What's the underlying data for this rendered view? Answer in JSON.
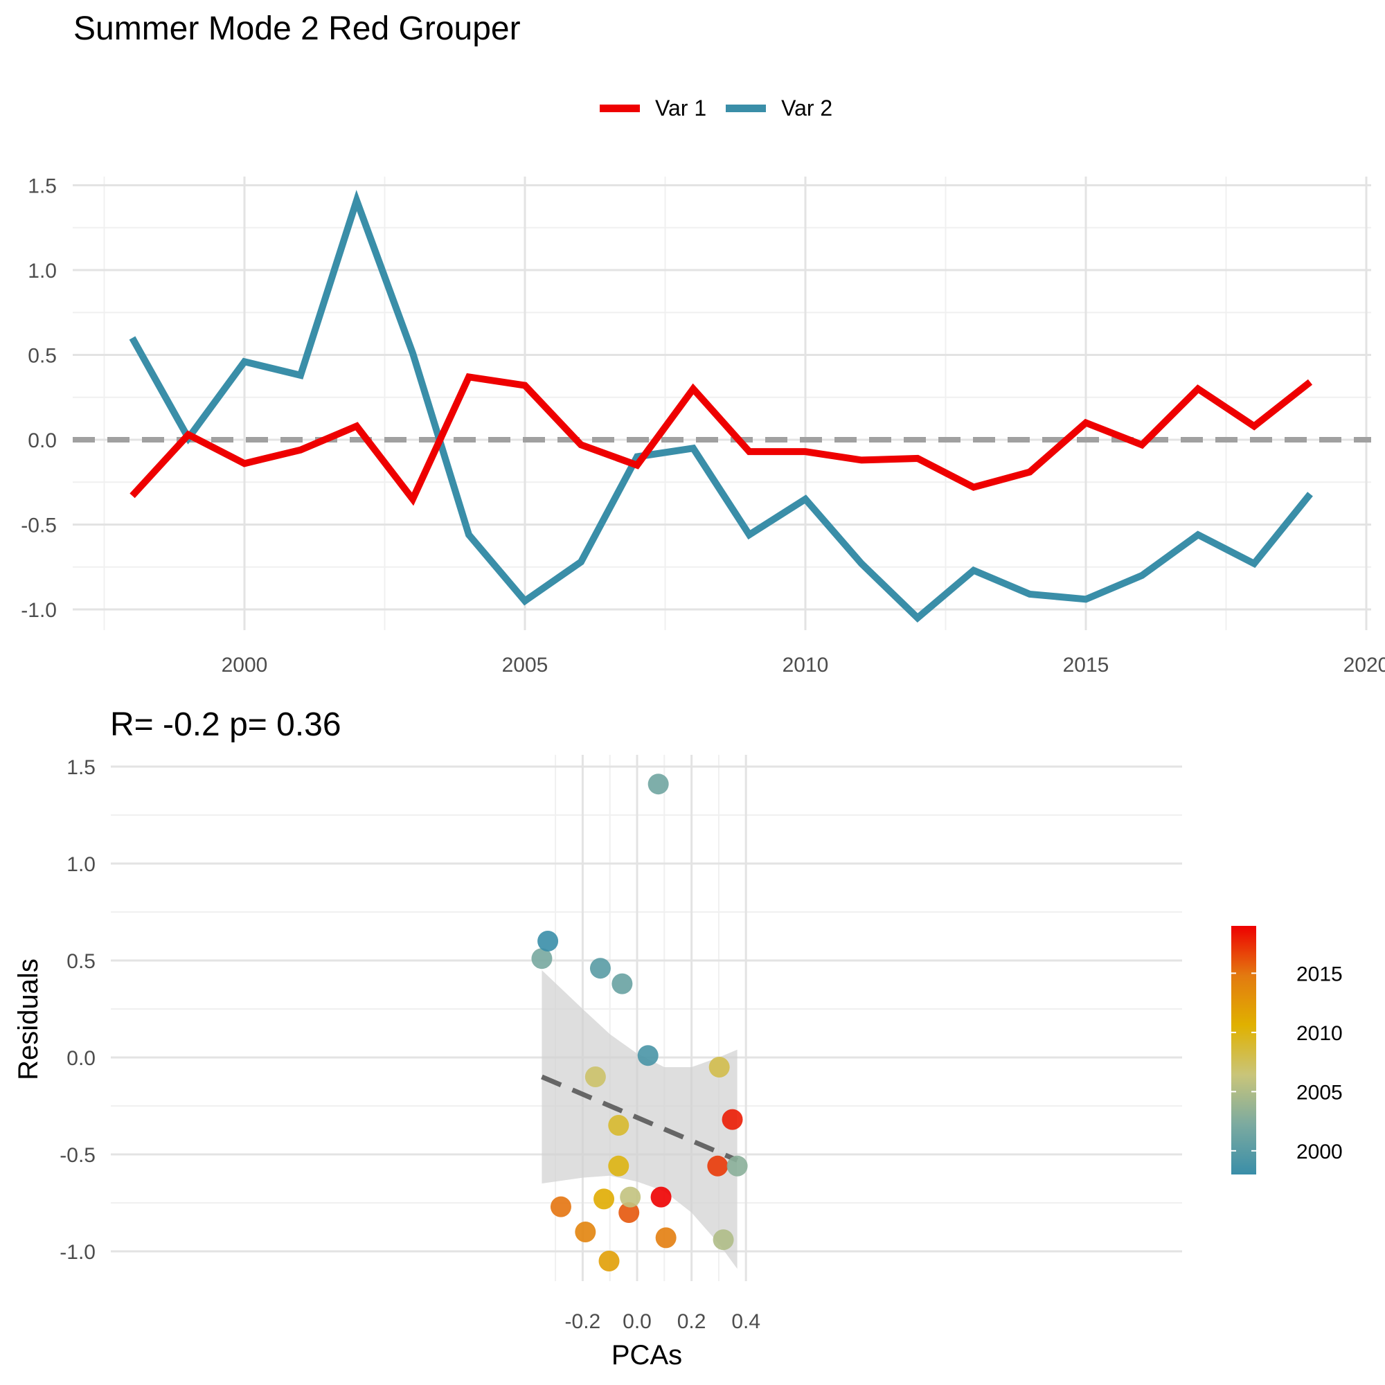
{
  "title": "Summer Mode 2 Red Grouper",
  "legend": {
    "items": [
      {
        "label": "Var 1",
        "color": "#EE0000"
      },
      {
        "label": "Var 2",
        "color": "#3A8EA8"
      }
    ]
  },
  "chart_data": [
    {
      "type": "line",
      "x_axis": {
        "ticks": [
          "2000",
          "2005",
          "2010",
          "2015",
          "2020"
        ],
        "range": [
          1997.5,
          2020
        ]
      },
      "y_axis": {
        "ticks": [
          "1.5",
          "1.0",
          "0.5",
          "0.0",
          "-0.5",
          "-1.0"
        ],
        "range": [
          -1.1,
          1.5
        ]
      },
      "grid": true,
      "reference_line": {
        "y": 0,
        "style": "dashed",
        "color": "#A0A0A0"
      },
      "x": [
        1998,
        1999,
        2000,
        2001,
        2002,
        2003,
        2004,
        2005,
        2006,
        2007,
        2008,
        2009,
        2010,
        2011,
        2012,
        2013,
        2014,
        2015,
        2016,
        2017,
        2018,
        2019
      ],
      "series": [
        {
          "name": "Var 1",
          "color": "#EE0000",
          "values": [
            -0.33,
            0.03,
            -0.14,
            -0.06,
            0.08,
            -0.35,
            0.37,
            0.32,
            -0.03,
            -0.15,
            0.3,
            -0.07,
            -0.07,
            -0.12,
            -0.11,
            -0.28,
            -0.19,
            0.1,
            -0.03,
            0.3,
            0.08,
            0.34
          ]
        },
        {
          "name": "Var 2",
          "color": "#3A8EA8",
          "values": [
            0.6,
            0.01,
            0.46,
            0.38,
            1.41,
            0.51,
            -0.56,
            -0.95,
            -0.72,
            -0.1,
            -0.05,
            -0.56,
            -0.35,
            -0.73,
            -1.05,
            -0.77,
            -0.91,
            -0.94,
            -0.8,
            -0.56,
            -0.73,
            -0.32
          ]
        }
      ]
    },
    {
      "type": "scatter",
      "annotation": "R= -0.2  p= 0.36",
      "xlabel": "PCAs",
      "ylabel": "Residuals",
      "x_axis": {
        "ticks": [
          "-0.2",
          "0.0",
          "0.2",
          "0.4"
        ],
        "range": [
          -0.385,
          0.4
        ]
      },
      "y_axis": {
        "ticks": [
          "1.5",
          "1.0",
          "0.5",
          "0.0",
          "-0.5",
          "-1.0"
        ],
        "range": [
          -1.15,
          1.55
        ]
      },
      "grid": true,
      "points": [
        {
          "x": -0.35,
          "y": 0.51,
          "year": 2002
        },
        {
          "x": -0.328,
          "y": 0.6,
          "year": 1998
        },
        {
          "x": -0.28,
          "y": -0.77,
          "year": 2015
        },
        {
          "x": -0.19,
          "y": -0.9,
          "year": 2014
        },
        {
          "x": -0.153,
          "y": -0.1,
          "year": 2007
        },
        {
          "x": -0.135,
          "y": 0.46,
          "year": 2000
        },
        {
          "x": -0.122,
          "y": -0.73,
          "year": 2011
        },
        {
          "x": -0.103,
          "y": -1.05,
          "year": 2012
        },
        {
          "x": -0.068,
          "y": -0.35,
          "year": 2009
        },
        {
          "x": -0.068,
          "y": -0.56,
          "year": 2010
        },
        {
          "x": -0.055,
          "y": 0.38,
          "year": 2001
        },
        {
          "x": -0.03,
          "y": -0.8,
          "year": 2016
        },
        {
          "x": -0.025,
          "y": -0.72,
          "year": 2006
        },
        {
          "x": 0.04,
          "y": 0.01,
          "year": 1999
        },
        {
          "x": 0.078,
          "y": 1.41,
          "year": 2001.5
        },
        {
          "x": 0.088,
          "y": -0.72,
          "year": 2019
        },
        {
          "x": 0.106,
          "y": -0.93,
          "year": 2014.5
        },
        {
          "x": 0.296,
          "y": -0.56,
          "year": 2017
        },
        {
          "x": 0.302,
          "y": -0.05,
          "year": 2008
        },
        {
          "x": 0.317,
          "y": -0.94,
          "year": 2005
        },
        {
          "x": 0.35,
          "y": -0.32,
          "year": 2018
        },
        {
          "x": 0.368,
          "y": -0.56,
          "year": 2003
        }
      ],
      "fit_line": {
        "x": [
          -0.35,
          0.368
        ],
        "y": [
          -0.1,
          -0.53
        ],
        "style": "dashed",
        "color": "#666666"
      },
      "confidence_band": {
        "x": [
          -0.35,
          -0.2,
          -0.1,
          0.0,
          0.1,
          0.2,
          0.3,
          0.368
        ],
        "upper": [
          0.45,
          0.25,
          0.12,
          0.02,
          -0.05,
          -0.05,
          0.0,
          0.04
        ],
        "lower": [
          -0.65,
          -0.62,
          -0.61,
          -0.64,
          -0.69,
          -0.8,
          -0.96,
          -1.09
        ]
      },
      "colorbar": {
        "ticks": [
          "2015",
          "2010",
          "2005",
          "2000"
        ],
        "range": [
          1998,
          2019
        ],
        "colors": [
          "#3A8EA8",
          "#7BAAA0",
          "#C9C57A",
          "#E0B100",
          "#E37A10",
          "#EE0000"
        ]
      }
    }
  ]
}
